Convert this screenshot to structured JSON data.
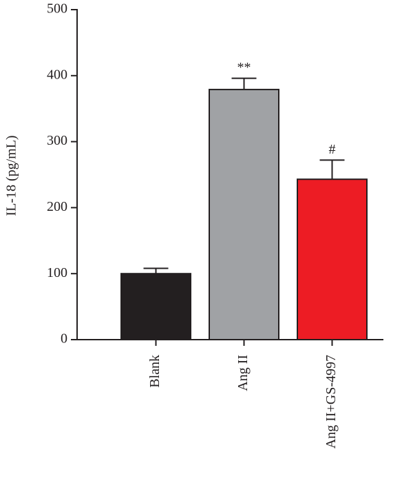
{
  "chart_data": {
    "type": "bar",
    "y_label": "IL-18 (pg/mL)",
    "categories": [
      "Blank",
      "Ang II",
      "Ang II+GS-4997"
    ],
    "values": [
      100,
      379,
      243
    ],
    "errors": [
      8,
      17,
      29
    ],
    "annotations": [
      null,
      "**",
      "#"
    ],
    "colors": [
      "#231f20",
      "#a0a2a5",
      "#ed1c24"
    ],
    "ylim": [
      0,
      500
    ],
    "yticks": [
      0,
      100,
      200,
      300,
      400,
      500
    ],
    "grid": false
  }
}
